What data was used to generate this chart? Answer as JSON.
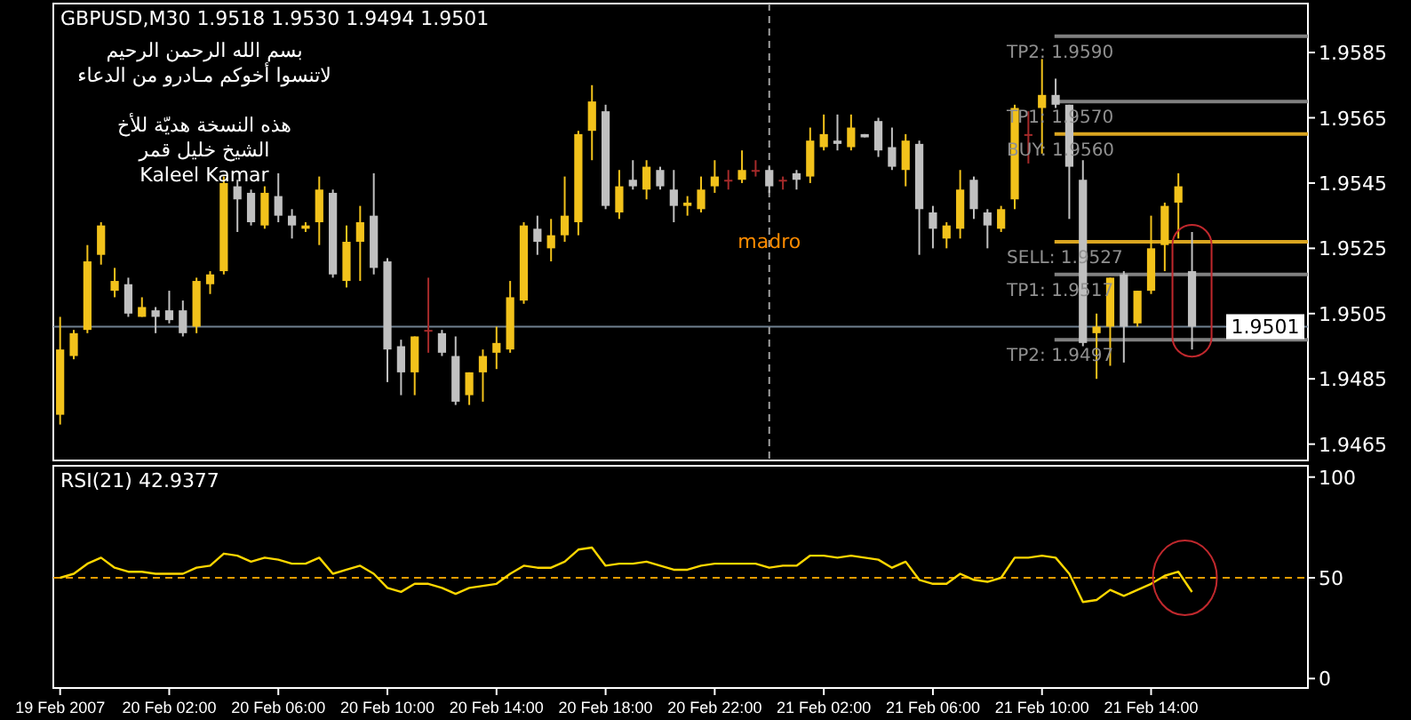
{
  "chart_data": [
    {
      "type": "candlestick",
      "title": "GBPUSD,M30  1.9518 1.9530 1.9494 1.9501",
      "x": [
        "2007-02-19T22:00",
        "2007-02-19T22:30",
        "2007-02-19T23:00",
        "2007-02-19T23:30",
        "2007-02-20T00:00",
        "2007-02-20T00:30",
        "2007-02-20T01:00",
        "2007-02-20T01:30",
        "2007-02-20T02:00",
        "2007-02-20T02:30",
        "2007-02-20T03:00",
        "2007-02-20T03:30",
        "2007-02-20T04:00",
        "2007-02-20T04:30",
        "2007-02-20T05:00",
        "2007-02-20T05:30",
        "2007-02-20T06:00",
        "2007-02-20T06:30",
        "2007-02-20T07:00",
        "2007-02-20T07:30",
        "2007-02-20T08:00",
        "2007-02-20T08:30",
        "2007-02-20T09:00",
        "2007-02-20T09:30",
        "2007-02-20T10:00",
        "2007-02-20T10:30",
        "2007-02-20T11:00",
        "2007-02-20T11:30",
        "2007-02-20T12:00",
        "2007-02-20T12:30",
        "2007-02-20T13:00",
        "2007-02-20T13:30",
        "2007-02-20T14:00",
        "2007-02-20T14:30",
        "2007-02-20T15:00",
        "2007-02-20T15:30",
        "2007-02-20T16:00",
        "2007-02-20T16:30",
        "2007-02-20T17:00",
        "2007-02-20T17:30",
        "2007-02-20T18:00",
        "2007-02-20T18:30",
        "2007-02-20T19:00",
        "2007-02-20T19:30",
        "2007-02-20T20:00",
        "2007-02-20T20:30",
        "2007-02-20T21:00",
        "2007-02-20T21:30",
        "2007-02-20T22:00",
        "2007-02-20T22:30",
        "2007-02-20T23:00",
        "2007-02-20T23:30",
        "2007-02-21T00:00",
        "2007-02-21T00:30",
        "2007-02-21T01:00",
        "2007-02-21T01:30",
        "2007-02-21T02:00",
        "2007-02-21T02:30",
        "2007-02-21T03:00",
        "2007-02-21T03:30",
        "2007-02-21T04:00",
        "2007-02-21T04:30",
        "2007-02-21T05:00",
        "2007-02-21T05:30",
        "2007-02-21T06:00",
        "2007-02-21T06:30",
        "2007-02-21T07:00",
        "2007-02-21T07:30",
        "2007-02-21T08:00",
        "2007-02-21T08:30",
        "2007-02-21T09:00",
        "2007-02-21T09:30",
        "2007-02-21T10:00",
        "2007-02-21T10:30",
        "2007-02-21T11:00",
        "2007-02-21T11:30",
        "2007-02-21T12:00",
        "2007-02-21T12:30",
        "2007-02-21T13:00",
        "2007-02-21T13:30",
        "2007-02-21T14:00",
        "2007-02-21T14:30",
        "2007-02-21T15:00",
        "2007-02-21T15:30"
      ],
      "ohlc": [
        [
          1.9474,
          1.9504,
          1.9471,
          1.9494
        ],
        [
          1.9492,
          1.95,
          1.9491,
          1.9499
        ],
        [
          1.95,
          1.9526,
          1.9499,
          1.9521
        ],
        [
          1.9523,
          1.9533,
          1.952,
          1.9532
        ],
        [
          1.9512,
          1.9519,
          1.951,
          1.9515
        ],
        [
          1.9514,
          1.9516,
          1.9504,
          1.9505
        ],
        [
          1.9504,
          1.951,
          1.9504,
          1.9507
        ],
        [
          1.9506,
          1.9507,
          1.9499,
          1.9504
        ],
        [
          1.9506,
          1.9512,
          1.9502,
          1.9503
        ],
        [
          1.9506,
          1.9509,
          1.9498,
          1.9499
        ],
        [
          1.9501,
          1.9516,
          1.9499,
          1.9515
        ],
        [
          1.9514,
          1.9518,
          1.9511,
          1.9517
        ],
        [
          1.9518,
          1.9547,
          1.9517,
          1.9545
        ],
        [
          1.9544,
          1.9546,
          1.953,
          1.954
        ],
        [
          1.9542,
          1.9543,
          1.9532,
          1.9533
        ],
        [
          1.9532,
          1.9544,
          1.9531,
          1.9542
        ],
        [
          1.9541,
          1.9548,
          1.9533,
          1.9535
        ],
        [
          1.9535,
          1.9537,
          1.9528,
          1.9532
        ],
        [
          1.9531,
          1.9533,
          1.953,
          1.9532
        ],
        [
          1.9533,
          1.9547,
          1.9526,
          1.9543
        ],
        [
          1.9542,
          1.9543,
          1.9516,
          1.9517
        ],
        [
          1.9515,
          1.9532,
          1.9513,
          1.9527
        ],
        [
          1.9527,
          1.9538,
          1.9515,
          1.9533
        ],
        [
          1.9535,
          1.9548,
          1.9517,
          1.9519
        ],
        [
          1.9521,
          1.9522,
          1.9484,
          1.9494
        ],
        [
          1.9495,
          1.9497,
          1.948,
          1.9487
        ],
        [
          1.9487,
          1.9498,
          1.948,
          1.9498
        ],
        [
          1.95,
          1.9516,
          1.9493,
          1.95
        ],
        [
          1.9499,
          1.95,
          1.9492,
          1.9493
        ],
        [
          1.9492,
          1.9498,
          1.9477,
          1.9478
        ],
        [
          1.948,
          1.9487,
          1.9477,
          1.9487
        ],
        [
          1.9487,
          1.9494,
          1.9478,
          1.9492
        ],
        [
          1.9493,
          1.9501,
          1.9488,
          1.9496
        ],
        [
          1.9494,
          1.9515,
          1.9493,
          1.951
        ],
        [
          1.9509,
          1.9533,
          1.9508,
          1.9532
        ],
        [
          1.9531,
          1.9535,
          1.9523,
          1.9527
        ],
        [
          1.9525,
          1.9534,
          1.9521,
          1.9529
        ],
        [
          1.9529,
          1.9547,
          1.9527,
          1.9535
        ],
        [
          1.9533,
          1.9561,
          1.9529,
          1.956
        ],
        [
          1.9561,
          1.9575,
          1.9552,
          1.957
        ],
        [
          1.9567,
          1.9569,
          1.9537,
          1.9538
        ],
        [
          1.9536,
          1.9549,
          1.9534,
          1.9544
        ],
        [
          1.9546,
          1.9552,
          1.9543,
          1.9544
        ],
        [
          1.9543,
          1.9552,
          1.954,
          1.955
        ],
        [
          1.9549,
          1.955,
          1.9543,
          1.9544
        ],
        [
          1.9543,
          1.9549,
          1.9533,
          1.9538
        ],
        [
          1.9538,
          1.9541,
          1.9535,
          1.9539
        ],
        [
          1.9537,
          1.9547,
          1.9536,
          1.9543
        ],
        [
          1.9544,
          1.9552,
          1.9542,
          1.9547
        ],
        [
          1.9546,
          1.9549,
          1.9543,
          1.9546
        ],
        [
          1.9546,
          1.9555,
          1.9545,
          1.9549
        ],
        [
          1.9549,
          1.9552,
          1.9547,
          1.9549
        ],
        [
          1.9549,
          1.955,
          1.9542,
          1.9544
        ],
        [
          1.9546,
          1.9547,
          1.9543,
          1.9546
        ],
        [
          1.9548,
          1.9549,
          1.9543,
          1.9546
        ],
        [
          1.9547,
          1.9562,
          1.9545,
          1.9558
        ],
        [
          1.9556,
          1.9566,
          1.9555,
          1.956
        ],
        [
          1.9558,
          1.9566,
          1.9555,
          1.9557
        ],
        [
          1.9556,
          1.9566,
          1.9555,
          1.9562
        ],
        [
          1.956,
          1.956,
          1.9559,
          1.9559
        ],
        [
          1.9564,
          1.9565,
          1.9553,
          1.9555
        ],
        [
          1.9556,
          1.9562,
          1.9549,
          1.955
        ],
        [
          1.9549,
          1.956,
          1.9544,
          1.9558
        ],
        [
          1.9557,
          1.9558,
          1.9523,
          1.9537
        ],
        [
          1.9536,
          1.9538,
          1.9525,
          1.9531
        ],
        [
          1.9528,
          1.9533,
          1.9525,
          1.9532
        ],
        [
          1.9531,
          1.9549,
          1.9528,
          1.9543
        ],
        [
          1.9546,
          1.9547,
          1.9534,
          1.9537
        ],
        [
          1.9536,
          1.9537,
          1.9525,
          1.9532
        ],
        [
          1.9531,
          1.9538,
          1.953,
          1.9537
        ],
        [
          1.954,
          1.9569,
          1.9537,
          1.9568
        ],
        [
          1.956,
          1.9567,
          1.9551,
          1.956
        ],
        [
          1.9568,
          1.9583,
          1.9554,
          1.9572
        ],
        [
          1.9572,
          1.9577,
          1.9568,
          1.9569
        ],
        [
          1.9569,
          1.9569,
          1.9534,
          1.955
        ],
        [
          1.9546,
          1.9552,
          1.9495,
          1.9496
        ],
        [
          1.9499,
          1.9505,
          1.9485,
          1.9501
        ],
        [
          1.9501,
          1.9516,
          1.9489,
          1.9516
        ],
        [
          1.9517,
          1.9518,
          1.949,
          1.9501
        ],
        [
          1.9502,
          1.9512,
          1.9501,
          1.9512
        ],
        [
          1.9512,
          1.9535,
          1.9511,
          1.9525
        ],
        [
          1.9526,
          1.9539,
          1.9518,
          1.9538
        ],
        [
          1.9539,
          1.9548,
          1.9528,
          1.9544
        ],
        [
          1.9518,
          1.953,
          1.9494,
          1.9501
        ]
      ],
      "colors": [
        "#f2c21b",
        "#f2c21b",
        "#f2c21b",
        "#f2c21b",
        "#f2c21b",
        "#c0c0c0",
        "#f2c21b",
        "#c0c0c0",
        "#c0c0c0",
        "#c0c0c0",
        "#f2c21b",
        "#f2c21b",
        "#f2c21b",
        "#c0c0c0",
        "#c0c0c0",
        "#f2c21b",
        "#c0c0c0",
        "#c0c0c0",
        "#f2c21b",
        "#f2c21b",
        "#c0c0c0",
        "#f2c21b",
        "#f2c21b",
        "#c0c0c0",
        "#c0c0c0",
        "#c0c0c0",
        "#f2c21b",
        "#a52a2a",
        "#c0c0c0",
        "#c0c0c0",
        "#f2c21b",
        "#f2c21b",
        "#f2c21b",
        "#f2c21b",
        "#f2c21b",
        "#c0c0c0",
        "#f2c21b",
        "#f2c21b",
        "#f2c21b",
        "#f2c21b",
        "#c0c0c0",
        "#f2c21b",
        "#c0c0c0",
        "#f2c21b",
        "#c0c0c0",
        "#c0c0c0",
        "#f2c21b",
        "#f2c21b",
        "#f2c21b",
        "#a52a2a",
        "#f2c21b",
        "#a52a2a",
        "#c0c0c0",
        "#a52a2a",
        "#c0c0c0",
        "#f2c21b",
        "#f2c21b",
        "#c0c0c0",
        "#f2c21b",
        "#c0c0c0",
        "#c0c0c0",
        "#c0c0c0",
        "#f2c21b",
        "#c0c0c0",
        "#c0c0c0",
        "#f2c21b",
        "#f2c21b",
        "#c0c0c0",
        "#c0c0c0",
        "#f2c21b",
        "#f2c21b",
        "#a52a2a",
        "#f2c21b",
        "#c0c0c0",
        "#c0c0c0",
        "#c0c0c0",
        "#f2c21b",
        "#f2c21b",
        "#c0c0c0",
        "#f2c21b",
        "#f2c21b",
        "#f2c21b",
        "#f2c21b",
        "#c0c0c0"
      ],
      "xlim": [
        "2007-02-19T21:45",
        "2007-02-21T19:45"
      ],
      "ylim": [
        1.946,
        1.96
      ],
      "yticks": [
        1.9465,
        1.9485,
        1.9505,
        1.9525,
        1.9545,
        1.9565,
        1.9585
      ],
      "tick_labels": "y",
      "ref_lines": [
        {
          "axis": "y",
          "value": 1.959,
          "label": "TP2: 1.9590",
          "color": "#808080"
        },
        {
          "axis": "y",
          "value": 1.957,
          "label": "TP1: 1.9570",
          "color": "#808080"
        },
        {
          "axis": "y",
          "value": 1.956,
          "label": "BUY: 1.9560",
          "color": "#daa520"
        },
        {
          "axis": "y",
          "value": 1.9527,
          "label": "SELL: 1.9527",
          "color": "#daa520"
        },
        {
          "axis": "y",
          "value": 1.9517,
          "label": "TP1: 1.9517",
          "color": "#808080"
        },
        {
          "axis": "y",
          "value": 1.9497,
          "label": "TP2: 1.9497",
          "color": "#808080"
        },
        {
          "axis": "y",
          "value": 1.9501,
          "label": "1.9501",
          "color": "#708090"
        },
        {
          "axis": "x",
          "value": "2007-02-21T00:00",
          "label": "madro",
          "color": "#a0a0a0",
          "line_style": "dashed"
        }
      ],
      "annotations": [
        "بسم الله الرحمن الرحيم",
        "لاتنسوا أخوكم مـادرو من الدعاء",
        "هذه النسخة هديّة للأخ",
        "الشيخ خليل قمر",
        "Kaleel Kamar"
      ]
    },
    {
      "type": "line",
      "title": "RSI(21) 42.9377",
      "x": [
        "2007-02-19T22:00",
        "2007-02-19T22:30",
        "2007-02-19T23:00",
        "2007-02-19T23:30",
        "2007-02-20T00:00",
        "2007-02-20T00:30",
        "2007-02-20T01:00",
        "2007-02-20T01:30",
        "2007-02-20T02:00",
        "2007-02-20T02:30",
        "2007-02-20T03:00",
        "2007-02-20T03:30",
        "2007-02-20T04:00",
        "2007-02-20T04:30",
        "2007-02-20T05:00",
        "2007-02-20T05:30",
        "2007-02-20T06:00",
        "2007-02-20T06:30",
        "2007-02-20T07:00",
        "2007-02-20T07:30",
        "2007-02-20T08:00",
        "2007-02-20T08:30",
        "2007-02-20T09:00",
        "2007-02-20T09:30",
        "2007-02-20T10:00",
        "2007-02-20T10:30",
        "2007-02-20T11:00",
        "2007-02-20T11:30",
        "2007-02-20T12:00",
        "2007-02-20T12:30",
        "2007-02-20T13:00",
        "2007-02-20T13:30",
        "2007-02-20T14:00",
        "2007-02-20T14:30",
        "2007-02-20T15:00",
        "2007-02-20T15:30",
        "2007-02-20T16:00",
        "2007-02-20T16:30",
        "2007-02-20T17:00",
        "2007-02-20T17:30",
        "2007-02-20T18:00",
        "2007-02-20T18:30",
        "2007-02-20T19:00",
        "2007-02-20T19:30",
        "2007-02-20T20:00",
        "2007-02-20T20:30",
        "2007-02-20T21:00",
        "2007-02-20T21:30",
        "2007-02-20T22:00",
        "2007-02-20T22:30",
        "2007-02-20T23:00",
        "2007-02-20T23:30",
        "2007-02-21T00:00",
        "2007-02-21T00:30",
        "2007-02-21T01:00",
        "2007-02-21T01:30",
        "2007-02-21T02:00",
        "2007-02-21T02:30",
        "2007-02-21T03:00",
        "2007-02-21T03:30",
        "2007-02-21T04:00",
        "2007-02-21T04:30",
        "2007-02-21T05:00",
        "2007-02-21T05:30",
        "2007-02-21T06:00",
        "2007-02-21T06:30",
        "2007-02-21T07:00",
        "2007-02-21T07:30",
        "2007-02-21T08:00",
        "2007-02-21T08:30",
        "2007-02-21T09:00",
        "2007-02-21T09:30",
        "2007-02-21T10:00",
        "2007-02-21T10:30",
        "2007-02-21T11:00",
        "2007-02-21T11:30",
        "2007-02-21T12:00",
        "2007-02-21T12:30",
        "2007-02-21T13:00",
        "2007-02-21T13:30",
        "2007-02-21T14:00",
        "2007-02-21T14:30",
        "2007-02-21T15:00",
        "2007-02-21T15:30"
      ],
      "series": [
        {
          "color": "#ffd700",
          "values": [
            50,
            52,
            57,
            60,
            55,
            53,
            53,
            52,
            52,
            52,
            55,
            56,
            62,
            61,
            58,
            60,
            59,
            57,
            57,
            60,
            52,
            54,
            56,
            52,
            45,
            43,
            47,
            47,
            45,
            42,
            45,
            46,
            47,
            52,
            56,
            55,
            55,
            58,
            64,
            65,
            56,
            57,
            57,
            58,
            56,
            54,
            54,
            56,
            57,
            57,
            57,
            57,
            55,
            56,
            56,
            61,
            61,
            60,
            61,
            60,
            59,
            55,
            58,
            49,
            47,
            47,
            52,
            49,
            48,
            50,
            60,
            60,
            61,
            60,
            52,
            38,
            39,
            44,
            41,
            44,
            47,
            51,
            53,
            42.9377
          ]
        }
      ],
      "xlim": [
        "2007-02-19T21:45",
        "2007-02-21T19:45"
      ],
      "ylim": [
        -4.7,
        105.6
      ],
      "yticks": [
        0,
        50,
        100
      ],
      "xticks": [
        {
          "value": "2007-02-19T22:00",
          "label": "19 Feb 2007"
        },
        {
          "value": "2007-02-20T02:00",
          "label": "20 Feb 02:00"
        },
        {
          "value": "2007-02-20T06:00",
          "label": "20 Feb 06:00"
        },
        {
          "value": "2007-02-20T10:00",
          "label": "20 Feb 10:00"
        },
        {
          "value": "2007-02-20T14:00",
          "label": "20 Feb 14:00"
        },
        {
          "value": "2007-02-20T18:00",
          "label": "20 Feb 18:00"
        },
        {
          "value": "2007-02-20T22:00",
          "label": "20 Feb 22:00"
        },
        {
          "value": "2007-02-21T02:00",
          "label": "21 Feb 02:00"
        },
        {
          "value": "2007-02-21T06:00",
          "label": "21 Feb 06:00"
        },
        {
          "value": "2007-02-21T10:00",
          "label": "21 Feb 10:00"
        },
        {
          "value": "2007-02-21T14:00",
          "label": "21 Feb 14:00"
        }
      ],
      "ref_lines": [
        {
          "axis": "y",
          "value": 50,
          "color": "#e69b00",
          "line_style": "dashed"
        }
      ]
    }
  ]
}
